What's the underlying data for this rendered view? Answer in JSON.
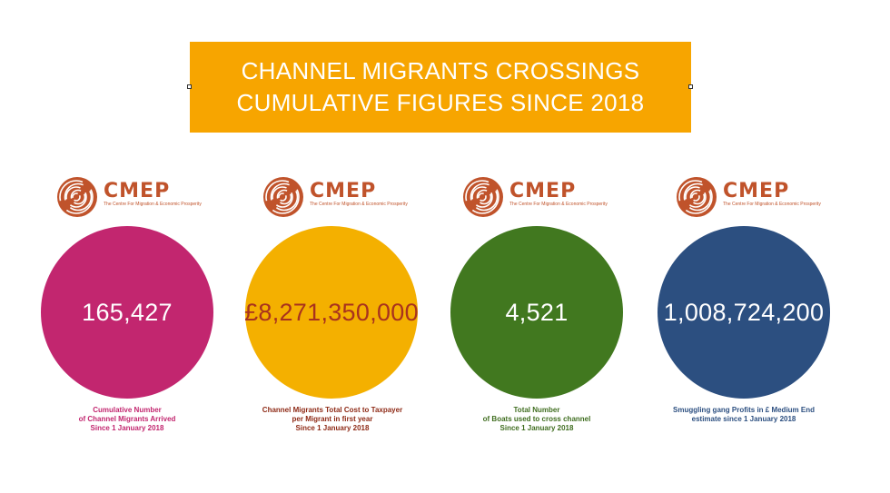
{
  "banner": {
    "line1": "CHANNEL MIGRANTS CROSSINGS",
    "line2": "CUMULATIVE FIGURES SINCE 2018",
    "color": "#f7a500"
  },
  "logo": {
    "name": "CMEP",
    "subtitle": "The Centre For Migration & Economic Prosperity",
    "color": "#c0532b",
    "icon": "fingerprint-icon"
  },
  "cards": [
    {
      "value": "165,427",
      "circle_color": "#c2266f",
      "value_color": "#ffffff",
      "caption_color": "#c2266f",
      "caption": [
        "Cumulative Number",
        "of Channel Migrants Arrived",
        "Since 1 January 2018"
      ]
    },
    {
      "value": "£8,271,350,000",
      "circle_color": "#f4b000",
      "value_color": "#a8321e",
      "caption_color": "#8e2a16",
      "caption": [
        "Channel Migrants Total Cost to Taxpayer",
        "per Migrant in first year",
        "Since 1 January 2018"
      ]
    },
    {
      "value": "4,521",
      "circle_color": "#41781f",
      "value_color": "#ffffff",
      "caption_color": "#3f6d1f",
      "caption": [
        "Total Number",
        "of Boats used to cross channel",
        "Since 1 January 2018"
      ]
    },
    {
      "value": "1,008,724,200",
      "circle_color": "#2c4f80",
      "value_color": "#ffffff",
      "caption_color": "#2c4f80",
      "caption": [
        "Smuggling gang Profits in £ Medium End",
        "estimate since 1 January 2018"
      ]
    }
  ]
}
